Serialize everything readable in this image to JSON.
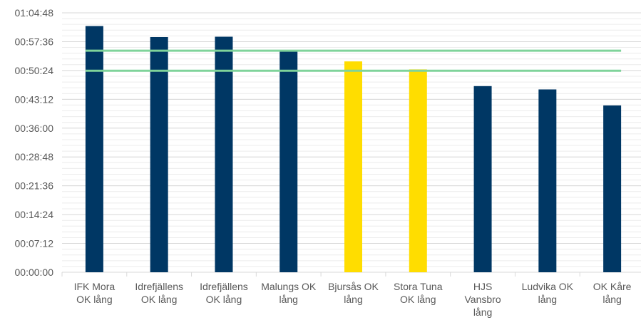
{
  "chart_data": {
    "type": "bar",
    "title": "",
    "xlabel": "",
    "ylabel": "",
    "y_format": "hh:mm:ss",
    "y_ticks": [
      "00:00:00",
      "00:07:12",
      "00:14:24",
      "00:21:36",
      "00:28:48",
      "00:36:00",
      "00:43:12",
      "00:50:24",
      "00:57:36",
      "01:04:48"
    ],
    "ylim": [
      "00:00:00",
      "01:04:48"
    ],
    "grid": true,
    "legend": "none",
    "categories": [
      [
        "IFK Mora",
        "OK lång"
      ],
      [
        "Idrefjällens",
        "OK lång"
      ],
      [
        "Idrefjällens",
        "OK lång"
      ],
      [
        "Malungs OK",
        "lång"
      ],
      [
        "Bjursås OK",
        "lång"
      ],
      [
        "Stora Tuna",
        "OK lång"
      ],
      [
        "HJS",
        "Vansbro",
        "lång"
      ],
      [
        "Ludvika OK",
        "lång"
      ],
      [
        "OK Kåre",
        "lång"
      ]
    ],
    "values": [
      "01:01:30",
      "00:58:45",
      "00:58:50",
      "00:55:20",
      "00:52:40",
      "00:50:40",
      "00:46:30",
      "00:45:40",
      "00:41:40"
    ],
    "bar_colors": [
      "#003764",
      "#003764",
      "#003764",
      "#003764",
      "#FFDD00",
      "#FFDD00",
      "#003764",
      "#003764",
      "#003764"
    ],
    "reference_lines": [
      {
        "value": "00:55:20",
        "color": "#7FD39A"
      },
      {
        "value": "00:50:20",
        "color": "#7FD39A"
      }
    ]
  }
}
